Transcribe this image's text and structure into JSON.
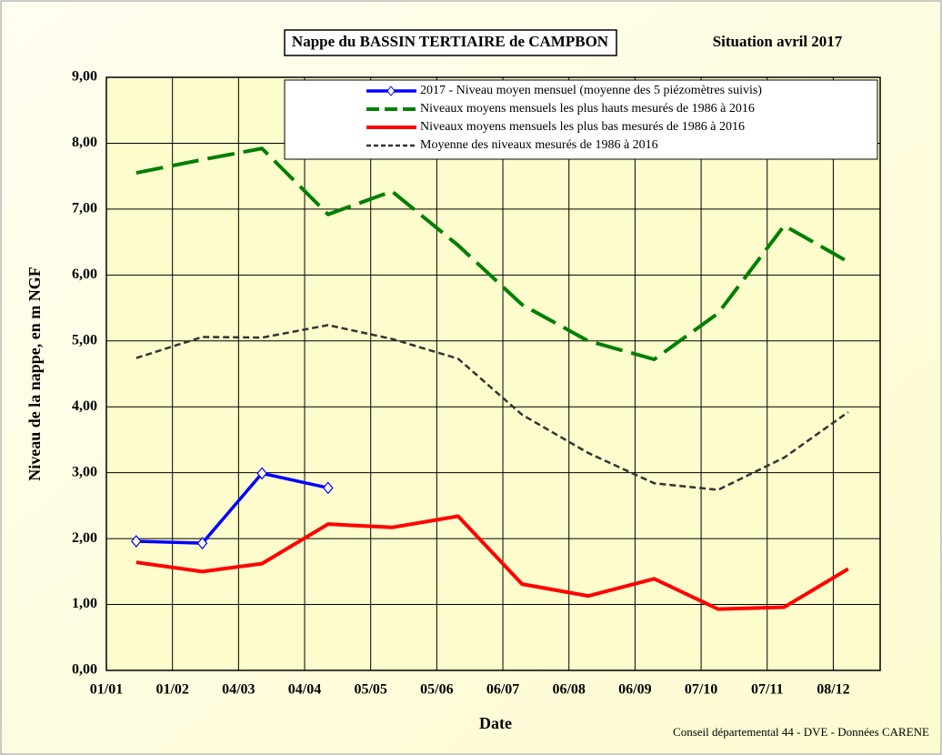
{
  "chart_data": {
    "type": "line",
    "title": "Nappe du BASSIN TERTIAIRE de CAMPBON",
    "subtitle": "Situation avril 2017",
    "x_label": "Date",
    "y_label": "Niveau de la nappe, en m NGF",
    "source": "Conseil départemental 44 - DVE -   Données CARENE",
    "x": [
      "15/01",
      "15/02",
      "15/03",
      "15/04",
      "15/05",
      "15/06",
      "15/07",
      "15/08",
      "15/09",
      "15/10",
      "15/11",
      "15/12"
    ],
    "xlim": [
      "01/01",
      "30/12"
    ],
    "xticks": [
      "01/01",
      "01/02",
      "04/03",
      "04/04",
      "05/05",
      "05/06",
      "06/07",
      "06/08",
      "06/09",
      "07/10",
      "07/11",
      "08/12"
    ],
    "ylim": [
      0,
      9
    ],
    "yticks": [
      {
        "value": 0,
        "label": "0,00"
      },
      {
        "value": 1,
        "label": "1,00"
      },
      {
        "value": 2,
        "label": "2,00"
      },
      {
        "value": 3,
        "label": "3,00"
      },
      {
        "value": 4,
        "label": "4,00"
      },
      {
        "value": 5,
        "label": "5,00"
      },
      {
        "value": 6,
        "label": "6,00"
      },
      {
        "value": 7,
        "label": "7,00"
      },
      {
        "value": 8,
        "label": "8,00"
      },
      {
        "value": 9,
        "label": "9,00"
      }
    ],
    "grid": true,
    "series": [
      {
        "name": "2017 - Niveau moyen mensuel (moyenne des 5 piézomètres suivis)",
        "color": "#0000ff",
        "values": [
          1.96,
          1.93,
          2.99,
          2.77,
          null,
          null,
          null,
          null,
          null,
          null,
          null,
          null
        ]
      },
      {
        "name": "Niveaux moyens mensuels les plus hauts mesurés de 1986 à 2016",
        "color": "#008000",
        "values": [
          7.55,
          7.75,
          7.92,
          6.92,
          7.27,
          6.45,
          5.55,
          5.0,
          4.72,
          5.42,
          6.75,
          6.2
        ]
      },
      {
        "name": "Niveaux moyens mensuels les plus bas mesurés de 1986 à 2016",
        "color": "#ff0000",
        "values": [
          1.64,
          1.5,
          1.62,
          2.22,
          2.17,
          2.34,
          1.31,
          1.13,
          1.39,
          0.93,
          0.96,
          1.54
        ]
      },
      {
        "name": "Moyenne des niveaux mesurés de 1986 à 2016",
        "color": "#333333",
        "values": [
          4.74,
          5.06,
          5.05,
          5.24,
          5.03,
          4.73,
          3.88,
          3.3,
          2.84,
          2.74,
          3.23,
          3.92
        ]
      }
    ]
  }
}
